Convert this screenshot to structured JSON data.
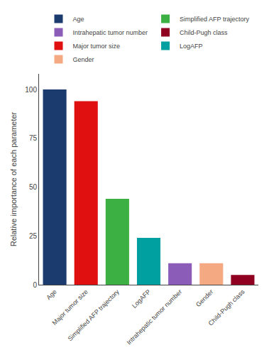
{
  "chart_data": {
    "type": "bar",
    "categories": [
      "Age",
      "Major tumor size",
      "Simplified AFP trajectory",
      "LogAFP",
      "Intrahepatic tumor number",
      "Gender",
      "Child-Pugh class"
    ],
    "series": [
      {
        "name": "Age",
        "color": "#1b3a6e",
        "values": [
          100,
          null,
          null,
          null,
          null,
          null,
          null
        ]
      },
      {
        "name": "Simplified AFP trajectory",
        "color": "#3cb043",
        "values": [
          null,
          null,
          44,
          null,
          null,
          null,
          null
        ]
      },
      {
        "name": "Intrahepatic tumor number",
        "color": "#8b5cb8",
        "values": [
          null,
          null,
          null,
          null,
          11,
          null,
          null
        ]
      },
      {
        "name": "Child-Pugh class",
        "color": "#900020",
        "values": [
          null,
          null,
          null,
          null,
          null,
          null,
          5
        ]
      },
      {
        "name": "Major tumor size",
        "color": "#e01010",
        "values": [
          null,
          94,
          null,
          null,
          null,
          null,
          null
        ]
      },
      {
        "name": "LogAFP",
        "color": "#00a0a0",
        "values": [
          null,
          null,
          null,
          24,
          null,
          null,
          null
        ]
      },
      {
        "name": "Gender",
        "color": "#f4a983",
        "values": [
          null,
          null,
          null,
          null,
          null,
          11,
          null
        ]
      }
    ],
    "ylabel": "Relative importance of each parameter",
    "ylim": [
      0,
      108
    ],
    "yticks": [
      0,
      25,
      50,
      75,
      100
    ],
    "legend": "top",
    "grid": false
  }
}
